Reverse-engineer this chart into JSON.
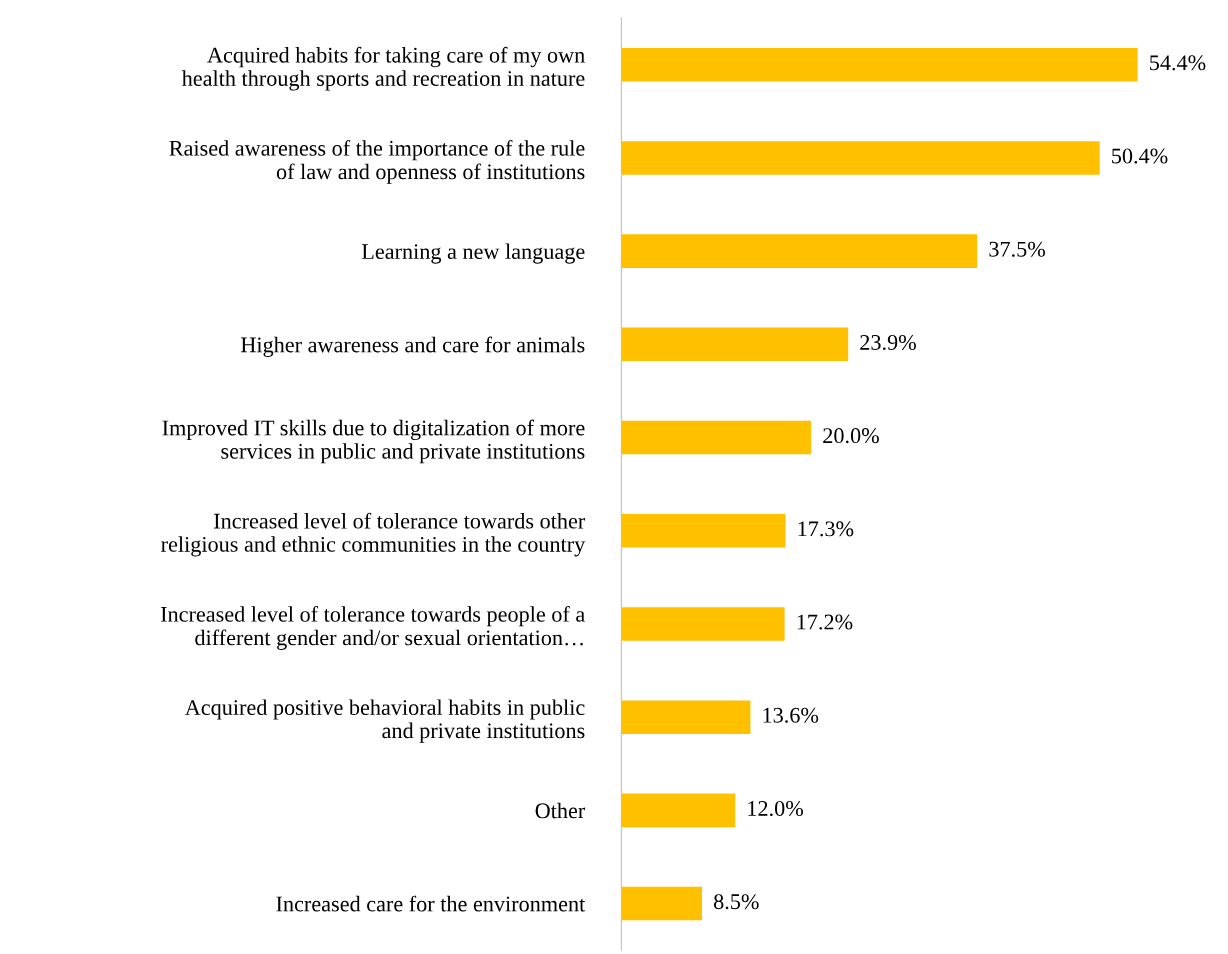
{
  "chart_data": {
    "type": "bar",
    "orientation": "horizontal",
    "categories": [
      "Acquired habits for taking care of my own\nhealth through sports and recreation in nature",
      "Raised awareness of the importance of the rule\nof law and openness of institutions",
      "Learning a new language",
      "Higher awareness and care for animals",
      "Improved IT skills due to digitalization of more\nservices in public and private institutions",
      "Increased level of tolerance towards other\nreligious and ethnic communities in the country",
      "Increased level of tolerance towards people of a\ndifferent gender and/or sexual orientation…",
      "Acquired positive behavioral habits in public\nand private institutions",
      "Other",
      "Increased care for the environment"
    ],
    "values": [
      54.4,
      50.4,
      37.5,
      23.9,
      20.0,
      17.3,
      17.2,
      13.6,
      12.0,
      8.5
    ],
    "value_labels": [
      "54.4%",
      "50.4%",
      "37.5%",
      "23.9%",
      "20.0%",
      "17.3%",
      "17.2%",
      "13.6%",
      "12.0%",
      "8.5%"
    ],
    "color": "#ffc000",
    "tick_labels": "y",
    "grid": false,
    "legend": false
  }
}
